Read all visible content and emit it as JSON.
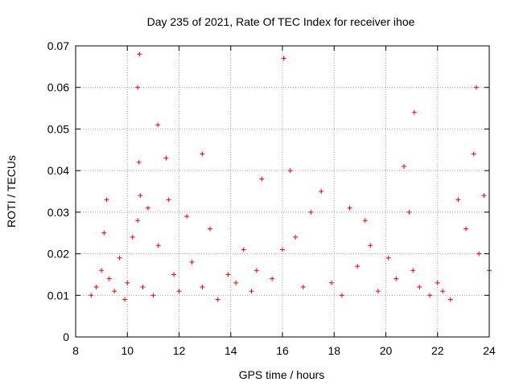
{
  "chart_data": {
    "type": "scatter",
    "title": "Day 235 of 2021, Rate Of TEC Index for receiver ihoe",
    "xlabel": "GPS time / hours",
    "ylabel": "ROTI / TECUs",
    "xlim": [
      8,
      24
    ],
    "ylim": [
      0,
      0.07
    ],
    "x_ticks": [
      "8",
      "10",
      "12",
      "14",
      "16",
      "18",
      "20",
      "22",
      "24"
    ],
    "y_ticks": [
      "0",
      "0.01",
      "0.02",
      "0.03",
      "0.04",
      "0.05",
      "0.06",
      "0.07"
    ],
    "grid": true,
    "marker": "+",
    "series": [
      {
        "name": "ROTI",
        "color": "#ff0000",
        "x": [
          8.6,
          8.8,
          9.0,
          9.1,
          9.2,
          9.3,
          9.5,
          9.7,
          9.9,
          10.0,
          10.2,
          10.4,
          10.45,
          10.5,
          10.6,
          10.8,
          11.0,
          11.2,
          11.5,
          11.6,
          11.8,
          12.0,
          12.3,
          12.5,
          12.9,
          13.2,
          13.5,
          13.9,
          14.2,
          14.5,
          14.8,
          15.0,
          15.2,
          15.6,
          16.0,
          16.3,
          16.5,
          16.8,
          17.1,
          17.5,
          17.9,
          18.3,
          18.6,
          18.9,
          19.2,
          19.4,
          19.7,
          20.1,
          20.4,
          20.7,
          20.9,
          21.05,
          21.3,
          21.7,
          22.0,
          22.2,
          22.5,
          22.8,
          23.1,
          23.4,
          23.6,
          23.8,
          24.0,
          10.47,
          10.4,
          16.05,
          11.18,
          12.9,
          21.1,
          23.5
        ],
        "y": [
          0.01,
          0.012,
          0.016,
          0.025,
          0.033,
          0.014,
          0.011,
          0.019,
          0.009,
          0.013,
          0.024,
          0.028,
          0.042,
          0.034,
          0.012,
          0.031,
          0.01,
          0.022,
          0.043,
          0.033,
          0.015,
          0.011,
          0.029,
          0.018,
          0.012,
          0.026,
          0.009,
          0.015,
          0.013,
          0.021,
          0.011,
          0.016,
          0.038,
          0.014,
          0.021,
          0.04,
          0.024,
          0.012,
          0.03,
          0.035,
          0.013,
          0.01,
          0.031,
          0.017,
          0.028,
          0.022,
          0.011,
          0.019,
          0.014,
          0.041,
          0.03,
          0.016,
          0.012,
          0.01,
          0.013,
          0.011,
          0.009,
          0.033,
          0.026,
          0.044,
          0.02,
          0.034,
          0.016,
          0.068,
          0.06,
          0.067,
          0.051,
          0.044,
          0.054,
          0.06
        ]
      }
    ]
  }
}
